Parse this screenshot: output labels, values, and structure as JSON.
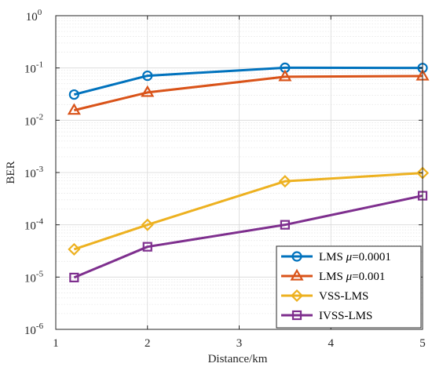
{
  "chart_data": {
    "type": "line",
    "xlabel": "Distance/km",
    "ylabel": "BER",
    "xlim": [
      1,
      5
    ],
    "ylim": [
      1e-06,
      1
    ],
    "yscale": "log",
    "grid": true,
    "legend_position": "bottom-right",
    "x_ticks": [
      {
        "value": 1,
        "label": "1"
      },
      {
        "value": 2,
        "label": "2"
      },
      {
        "value": 3,
        "label": "3"
      },
      {
        "value": 4,
        "label": "4"
      },
      {
        "value": 5,
        "label": "5"
      }
    ],
    "y_ticks": [
      {
        "exp": -6,
        "base": "10",
        "sup": "-6"
      },
      {
        "exp": -5,
        "base": "10",
        "sup": "-5"
      },
      {
        "exp": -4,
        "base": "10",
        "sup": "-4"
      },
      {
        "exp": -3,
        "base": "10",
        "sup": "-3"
      },
      {
        "exp": -2,
        "base": "10",
        "sup": "-2"
      },
      {
        "exp": -1,
        "base": "10",
        "sup": "-1"
      },
      {
        "exp": 0,
        "base": "10",
        "sup": "0"
      }
    ],
    "x": [
      1.2,
      2,
      3.5,
      5
    ],
    "series": [
      {
        "name": "LMS μ=0.0001",
        "name_prefix": "LMS ",
        "name_symbol": "μ",
        "name_suffix": "=0.0001",
        "color": "#0072BD",
        "marker": "circle",
        "values": [
          0.031,
          0.071,
          0.101,
          0.1
        ]
      },
      {
        "name": "LMS μ=0.001",
        "name_prefix": "LMS ",
        "name_symbol": "μ",
        "name_suffix": "=0.001",
        "color": "#D95319",
        "marker": "triangle",
        "values": [
          0.0155,
          0.034,
          0.068,
          0.07
        ]
      },
      {
        "name": "VSS-LMS",
        "name_prefix": "VSS-LMS",
        "name_symbol": "",
        "name_suffix": "",
        "color": "#EDB120",
        "marker": "diamond",
        "values": [
          3.4e-05,
          0.0001,
          0.00068,
          0.00098
        ]
      },
      {
        "name": "IVSS-LMS",
        "name_prefix": "IVSS-LMS",
        "name_symbol": "",
        "name_suffix": "",
        "color": "#7E2F8E",
        "marker": "square",
        "values": [
          9.8e-06,
          3.8e-05,
          0.0001,
          0.00036
        ]
      }
    ]
  }
}
